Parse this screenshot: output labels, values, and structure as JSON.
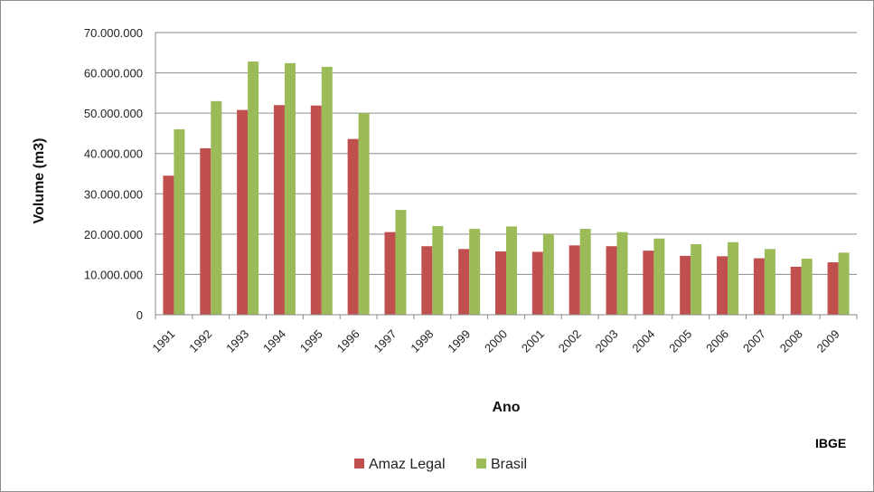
{
  "chart_data": {
    "type": "bar",
    "title": "",
    "xlabel": "Ano",
    "ylabel": "Volume (m3)",
    "ylim": [
      0,
      70000000
    ],
    "yticks": [
      0,
      10000000,
      20000000,
      30000000,
      40000000,
      50000000,
      60000000,
      70000000
    ],
    "ytick_labels": [
      "0",
      "10.000.000",
      "20.000.000",
      "30.000.000",
      "40.000.000",
      "50.000.000",
      "60.000.000",
      "70.000.000"
    ],
    "grid": true,
    "legend_position": "bottom",
    "categories": [
      "1991",
      "1992",
      "1993",
      "1994",
      "1995",
      "1996",
      "1997",
      "1998",
      "1999",
      "2000",
      "2001",
      "2002",
      "2003",
      "2004",
      "2005",
      "2006",
      "2007",
      "2008",
      "2009"
    ],
    "series": [
      {
        "name": "Amaz Legal",
        "color": "#c0504d",
        "values": [
          34500000,
          41300000,
          50800000,
          52000000,
          51900000,
          43600000,
          20500000,
          17000000,
          16300000,
          15700000,
          15600000,
          17200000,
          17000000,
          15900000,
          14600000,
          14500000,
          14000000,
          11900000,
          13000000
        ]
      },
      {
        "name": "Brasil",
        "color": "#9bbb59",
        "values": [
          46000000,
          53000000,
          62800000,
          62400000,
          61500000,
          50000000,
          26000000,
          22000000,
          21300000,
          21900000,
          20000000,
          21300000,
          20500000,
          18900000,
          17500000,
          18000000,
          16300000,
          13900000,
          15400000
        ]
      }
    ]
  },
  "source_label": "IBGE"
}
